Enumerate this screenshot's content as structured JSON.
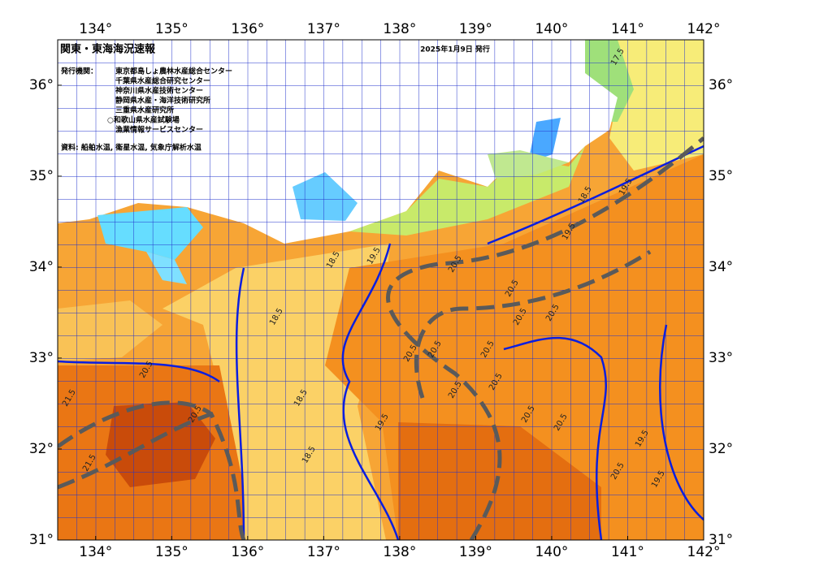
{
  "header": {
    "title": "関東・東海海況速報",
    "date": "2025年1月9日 発行"
  },
  "issuers": {
    "label": "発行機関：",
    "names": [
      "東京都島しょ農林水産総合センター",
      "千葉県水産総合研究センター",
      "神奈川県水産技術センター",
      "静岡県水産・海洋技術研究所",
      "三重県水産研究所",
      "○和歌山県水産試験場",
      "漁業情報サービスセンター"
    ]
  },
  "source": "資料: 船舶水温, 衛星水温, 気象庁解析水温",
  "axes": {
    "xlim": [
      133.5,
      142
    ],
    "ylim": [
      31,
      36.5
    ],
    "xticks": [
      {
        "value": 134,
        "label": "134°"
      },
      {
        "value": 135,
        "label": "135°"
      },
      {
        "value": 136,
        "label": "136°"
      },
      {
        "value": 137,
        "label": "137°"
      },
      {
        "value": 138,
        "label": "138°"
      },
      {
        "value": 139,
        "label": "139°"
      },
      {
        "value": 140,
        "label": "140°"
      },
      {
        "value": 141,
        "label": "141°"
      },
      {
        "value": 142,
        "label": "142°"
      }
    ],
    "yticks": [
      {
        "value": 31,
        "label": "31°"
      },
      {
        "value": 32,
        "label": "32°"
      },
      {
        "value": 33,
        "label": "33°"
      },
      {
        "value": 34,
        "label": "34°"
      },
      {
        "value": 35,
        "label": "35°"
      },
      {
        "value": 36,
        "label": "36°"
      }
    ]
  },
  "contour_labels": [
    "20.5",
    "19.5",
    "20.5",
    "20.5",
    "20.5",
    "20.5",
    "20.5",
    "20.5",
    "20.5",
    "20.5",
    "20.5",
    "19.5",
    "20.5",
    "19.5",
    "18.5",
    "18.5",
    "18.5",
    "18.5",
    "19.5",
    "20.5",
    "21.5",
    "21.5",
    "20.5",
    "20.5",
    "19.5",
    "19.5",
    "18.5",
    "17.5"
  ]
}
